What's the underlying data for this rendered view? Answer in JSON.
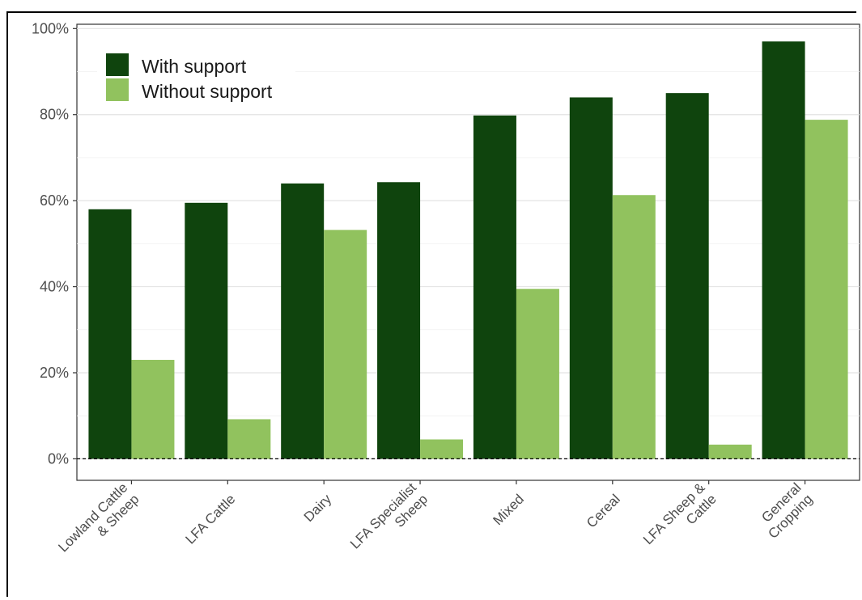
{
  "chart_data": {
    "type": "bar",
    "categories": [
      [
        "Lowland Cattle",
        "& Sheep"
      ],
      [
        "LFA Cattle"
      ],
      [
        "Dairy"
      ],
      [
        "LFA Specialist",
        "Sheep"
      ],
      [
        "Mixed"
      ],
      [
        "Cereal"
      ],
      [
        "LFA Sheep &",
        "Cattle"
      ],
      [
        "General",
        "Cropping"
      ]
    ],
    "series": [
      {
        "name": "With support",
        "color": "#0f440d",
        "values": [
          58,
          59.5,
          64,
          64.3,
          79.8,
          84,
          85,
          97
        ]
      },
      {
        "name": "Without support",
        "color": "#91c25e",
        "values": [
          23,
          9.2,
          53.2,
          4.5,
          39.5,
          61.3,
          3.3,
          78.8
        ]
      }
    ],
    "y_ticks": [
      "0%",
      "20%",
      "40%",
      "60%",
      "80%",
      "100%"
    ],
    "y_tick_values": [
      0,
      20,
      40,
      60,
      80,
      100
    ],
    "ylim": [
      -5,
      101
    ],
    "grid": true,
    "reference_line": 0,
    "legend_position": "top-left"
  }
}
